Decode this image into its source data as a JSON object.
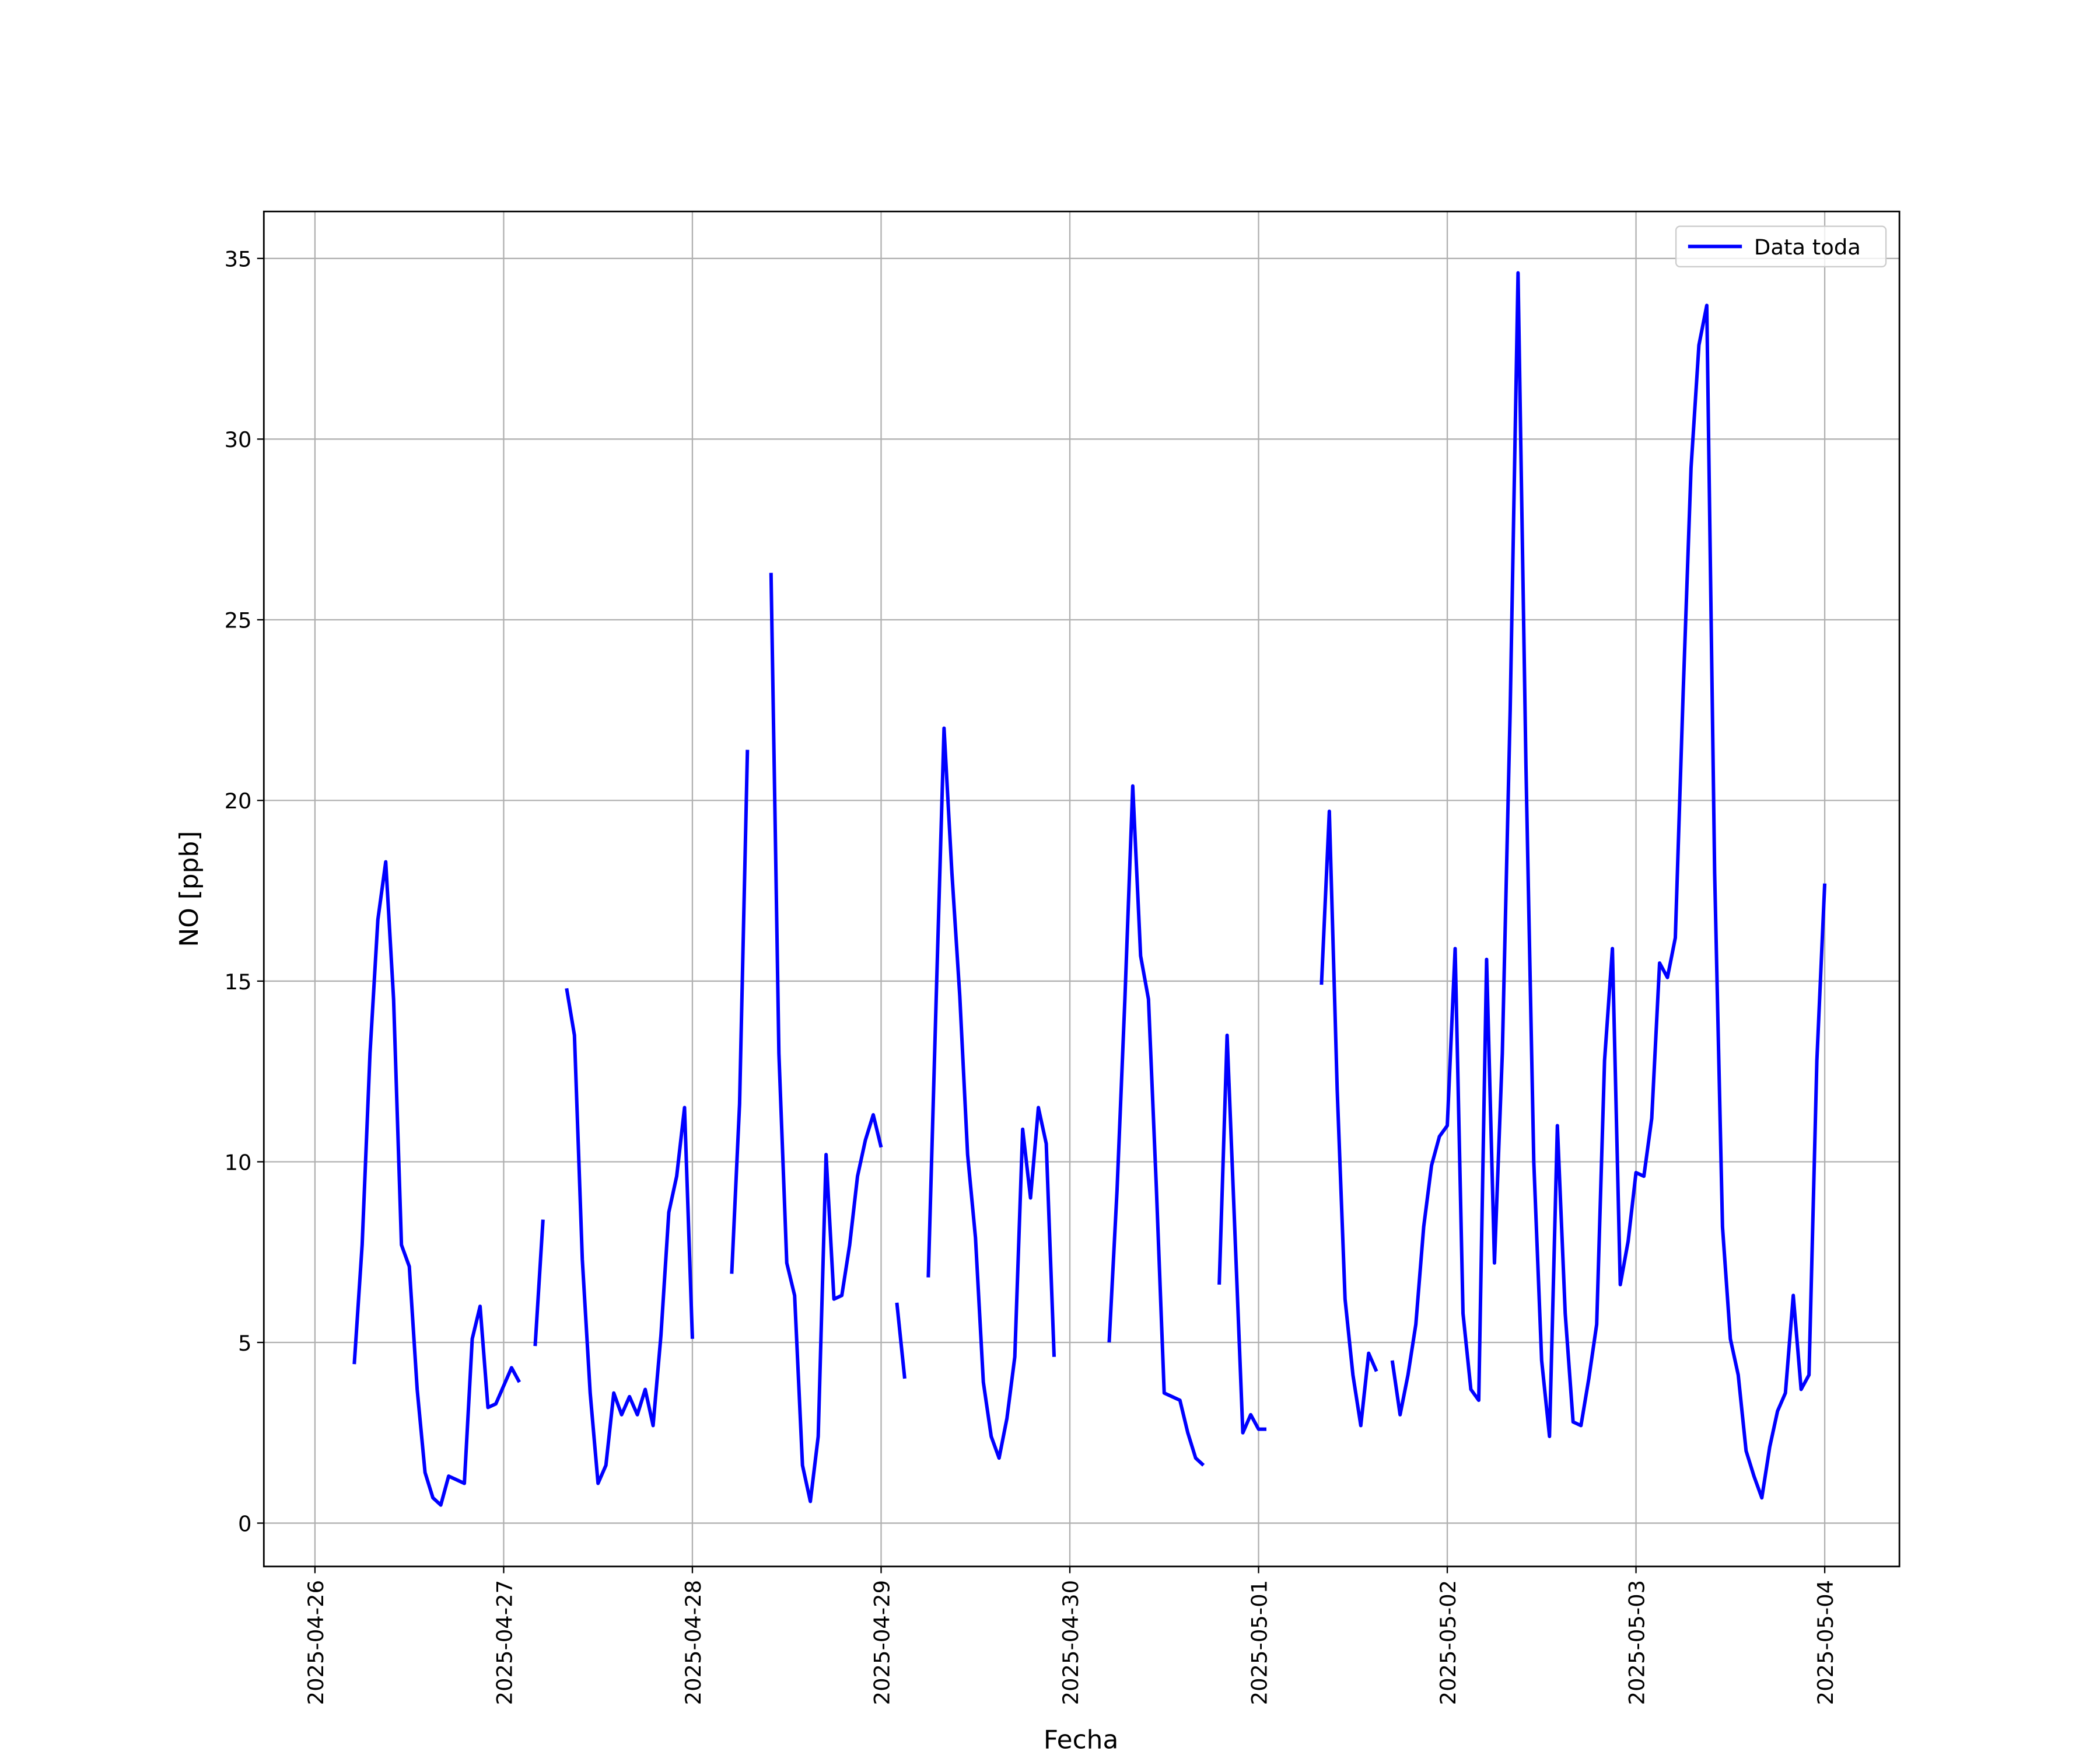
{
  "chart_data": {
    "type": "line",
    "x_label": "Fecha",
    "y_label": "NO [ppb]",
    "x": [
      "2025-04-26T05:00",
      "2025-04-26T06:00",
      "2025-04-26T07:00",
      "2025-04-26T08:00",
      "2025-04-26T09:00",
      "2025-04-26T10:00",
      "2025-04-26T11:00",
      "2025-04-26T12:00",
      "2025-04-26T13:00",
      "2025-04-26T14:00",
      "2025-04-26T15:00",
      "2025-04-26T16:00",
      "2025-04-26T17:00",
      "2025-04-26T18:00",
      "2025-04-26T19:00",
      "2025-04-26T20:00",
      "2025-04-26T21:00",
      "2025-04-26T22:00",
      "2025-04-26T23:00",
      "2025-04-27T00:00",
      "2025-04-27T01:00",
      "2025-04-27T02:00",
      "2025-04-27T03:00",
      "2025-04-27T04:00",
      "2025-04-27T05:00",
      "2025-04-27T06:00",
      "2025-04-27T07:00",
      "2025-04-27T08:00",
      "2025-04-27T09:00",
      "2025-04-27T10:00",
      "2025-04-27T11:00",
      "2025-04-27T12:00",
      "2025-04-27T13:00",
      "2025-04-27T14:00",
      "2025-04-27T15:00",
      "2025-04-27T16:00",
      "2025-04-27T17:00",
      "2025-04-27T18:00",
      "2025-04-27T19:00",
      "2025-04-27T20:00",
      "2025-04-27T21:00",
      "2025-04-27T22:00",
      "2025-04-27T23:00",
      "2025-04-28T00:00",
      "2025-04-28T01:00",
      "2025-04-28T02:00",
      "2025-04-28T03:00",
      "2025-04-28T04:00",
      "2025-04-28T05:00",
      "2025-04-28T06:00",
      "2025-04-28T07:00",
      "2025-04-28T08:00",
      "2025-04-28T09:00",
      "2025-04-28T10:00",
      "2025-04-28T11:00",
      "2025-04-28T12:00",
      "2025-04-28T13:00",
      "2025-04-28T14:00",
      "2025-04-28T15:00",
      "2025-04-28T16:00",
      "2025-04-28T17:00",
      "2025-04-28T18:00",
      "2025-04-28T19:00",
      "2025-04-28T20:00",
      "2025-04-28T21:00",
      "2025-04-28T22:00",
      "2025-04-28T23:00",
      "2025-04-29T00:00",
      "2025-04-29T01:00",
      "2025-04-29T02:00",
      "2025-04-29T03:00",
      "2025-04-29T04:00",
      "2025-04-29T05:00",
      "2025-04-29T06:00",
      "2025-04-29T07:00",
      "2025-04-29T08:00",
      "2025-04-29T09:00",
      "2025-04-29T10:00",
      "2025-04-29T11:00",
      "2025-04-29T12:00",
      "2025-04-29T13:00",
      "2025-04-29T14:00",
      "2025-04-29T15:00",
      "2025-04-29T16:00",
      "2025-04-29T17:00",
      "2025-04-29T18:00",
      "2025-04-29T19:00",
      "2025-04-29T20:00",
      "2025-04-29T21:00",
      "2025-04-29T22:00",
      "2025-04-29T23:00",
      "2025-04-30T00:00",
      "2025-04-30T01:00",
      "2025-04-30T02:00",
      "2025-04-30T03:00",
      "2025-04-30T04:00",
      "2025-04-30T05:00",
      "2025-04-30T06:00",
      "2025-04-30T07:00",
      "2025-04-30T08:00",
      "2025-04-30T09:00",
      "2025-04-30T10:00",
      "2025-04-30T11:00",
      "2025-04-30T12:00",
      "2025-04-30T13:00",
      "2025-04-30T14:00",
      "2025-04-30T15:00",
      "2025-04-30T16:00",
      "2025-04-30T17:00",
      "2025-04-30T18:00",
      "2025-04-30T19:00",
      "2025-04-30T20:00",
      "2025-04-30T21:00",
      "2025-04-30T22:00",
      "2025-04-30T23:00",
      "2025-05-01T00:00",
      "2025-05-01T01:00",
      "2025-05-01T02:00",
      "2025-05-01T03:00",
      "2025-05-01T04:00",
      "2025-05-01T05:00",
      "2025-05-01T06:00",
      "2025-05-01T07:00",
      "2025-05-01T08:00",
      "2025-05-01T09:00",
      "2025-05-01T10:00",
      "2025-05-01T11:00",
      "2025-05-01T12:00",
      "2025-05-01T13:00",
      "2025-05-01T14:00",
      "2025-05-01T15:00",
      "2025-05-01T16:00",
      "2025-05-01T17:00",
      "2025-05-01T18:00",
      "2025-05-01T19:00",
      "2025-05-01T20:00",
      "2025-05-01T21:00",
      "2025-05-01T22:00",
      "2025-05-01T23:00",
      "2025-05-02T00:00",
      "2025-05-02T01:00",
      "2025-05-02T02:00",
      "2025-05-02T03:00",
      "2025-05-02T04:00",
      "2025-05-02T05:00",
      "2025-05-02T06:00",
      "2025-05-02T07:00",
      "2025-05-02T08:00",
      "2025-05-02T09:00",
      "2025-05-02T10:00",
      "2025-05-02T11:00",
      "2025-05-02T12:00",
      "2025-05-02T13:00",
      "2025-05-02T14:00",
      "2025-05-02T15:00",
      "2025-05-02T16:00",
      "2025-05-02T17:00",
      "2025-05-02T18:00",
      "2025-05-02T19:00",
      "2025-05-02T20:00",
      "2025-05-02T21:00",
      "2025-05-02T22:00",
      "2025-05-02T23:00",
      "2025-05-03T00:00",
      "2025-05-03T01:00",
      "2025-05-03T02:00",
      "2025-05-03T03:00",
      "2025-05-03T04:00",
      "2025-05-03T05:00",
      "2025-05-03T06:00",
      "2025-05-03T07:00",
      "2025-05-03T08:00",
      "2025-05-03T09:00",
      "2025-05-03T10:00",
      "2025-05-03T11:00",
      "2025-05-03T12:00",
      "2025-05-03T13:00",
      "2025-05-03T14:00",
      "2025-05-03T15:00",
      "2025-05-03T16:00",
      "2025-05-03T17:00",
      "2025-05-03T18:00",
      "2025-05-03T19:00",
      "2025-05-03T20:00",
      "2025-05-03T21:00",
      "2025-05-03T22:00",
      "2025-05-03T23:00",
      "2025-05-04T00:00"
    ],
    "series": [
      {
        "name": "Data toda",
        "color": "#0000ff",
        "values": [
          4.4,
          7.7,
          13,
          16.7,
          18.3,
          14.5,
          7.7,
          7.1,
          3.7,
          1.4,
          0.7,
          0.5,
          1.3,
          1.2,
          1.1,
          5.1,
          6,
          3.2,
          3.3,
          3.8,
          4.3,
          3.9,
          null,
          4.9,
          8.4,
          null,
          null,
          14.8,
          13.5,
          7.3,
          3.6,
          1.1,
          1.6,
          3.6,
          3.0,
          3.5,
          3.0,
          3.7,
          2.7,
          5.2,
          8.6,
          9.6,
          11.5,
          5.1,
          null,
          null,
          null,
          null,
          6.9,
          11.6,
          21.4,
          null,
          null,
          26.3,
          13.0,
          7.2,
          6.3,
          1.6,
          0.6,
          2.4,
          10.2,
          6.2,
          6.3,
          7.7,
          9.6,
          10.6,
          11.3,
          10.4,
          null,
          6.1,
          4.0,
          null,
          null,
          6.8,
          14.5,
          22,
          18,
          14.6,
          10.2,
          7.9,
          3.9,
          2.4,
          1.8,
          2.9,
          4.6,
          10.9,
          9.0,
          11.5,
          10.5,
          4.6,
          null,
          null,
          null,
          null,
          null,
          null,
          5.0,
          9.2,
          14.5,
          20.4,
          15.7,
          14.5,
          9.3,
          3.6,
          3.5,
          3.4,
          2.5,
          1.8,
          1.6,
          null,
          6.6,
          13.5,
          8.0,
          2.5,
          3.0,
          2.6,
          2.6,
          null,
          null,
          null,
          null,
          null,
          null,
          14.9,
          19.7,
          12,
          6.2,
          4.1,
          2.7,
          4.7,
          4.2,
          null,
          4.5,
          3.0,
          4.1,
          5.5,
          8.2,
          9.9,
          10.7,
          11.0,
          15.9,
          5.8,
          3.7,
          3.4,
          15.6,
          7.2,
          13,
          22.5,
          34.6,
          21,
          10,
          4.5,
          2.4,
          11.0,
          5.8,
          2.8,
          2.7,
          4.0,
          5.5,
          12.8,
          15.9,
          6.6,
          7.8,
          9.7,
          9.6,
          11.2,
          15.5,
          15.1,
          16.2,
          23,
          29.2,
          32.6,
          33.7,
          18,
          8.2,
          5.1,
          4.1,
          2.0,
          1.3,
          0.7,
          2.1,
          3.1,
          3.6,
          6.3,
          3.7,
          4.1,
          12.8,
          17.7
        ]
      }
    ],
    "xlim": [
      "2025-04-25T17:30",
      "2025-05-04T09:30"
    ],
    "xticks": [
      "2025-04-26",
      "2025-04-27",
      "2025-04-28",
      "2025-04-29",
      "2025-04-30",
      "2025-05-01",
      "2025-05-02",
      "2025-05-03",
      "2025-05-04"
    ],
    "ylim": [
      -1.2,
      36.3
    ],
    "yticks": [
      0,
      5,
      10,
      15,
      20,
      25,
      30,
      35
    ],
    "grid": true,
    "legend": "upper right"
  }
}
